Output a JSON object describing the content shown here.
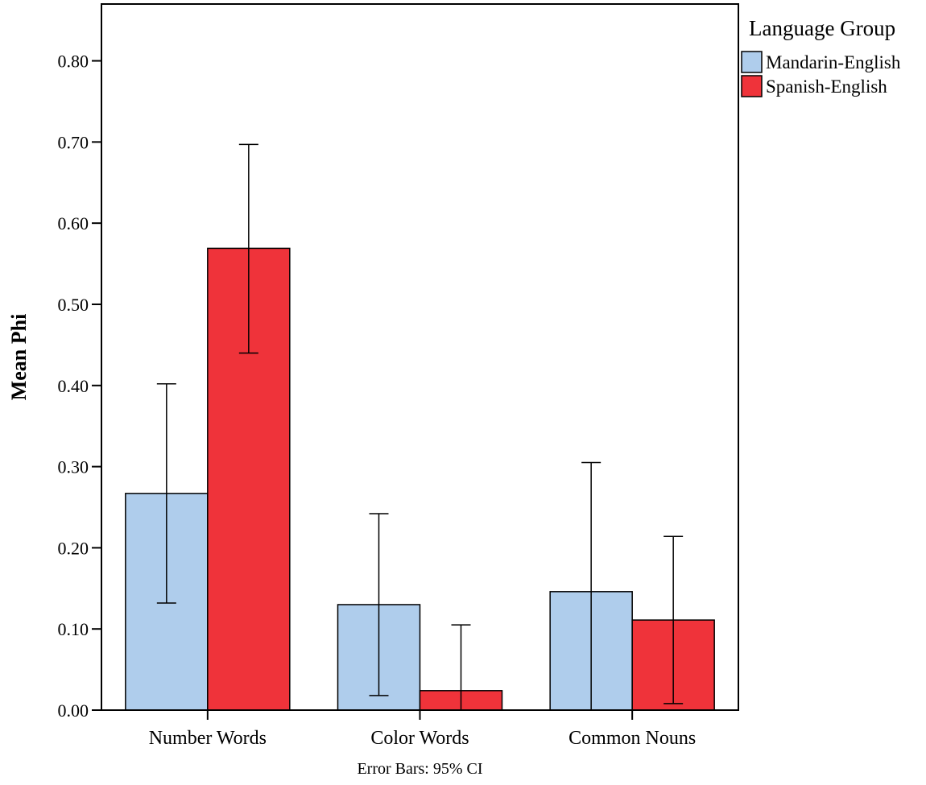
{
  "chart_data": {
    "type": "bar",
    "categories": [
      "Number Words",
      "Color Words",
      "Common Nouns"
    ],
    "series": [
      {
        "name": "Mandarin-English",
        "color": "#afcdec",
        "values": [
          0.267,
          0.13,
          0.146
        ],
        "ci_low": [
          0.132,
          0.018,
          0.0
        ],
        "ci_high": [
          0.402,
          0.242,
          0.305
        ]
      },
      {
        "name": "Spanish-English",
        "color": "#ef333a",
        "values": [
          0.569,
          0.024,
          0.111
        ],
        "ci_low": [
          0.44,
          0.0,
          0.008
        ],
        "ci_high": [
          0.697,
          0.105,
          0.214
        ]
      }
    ],
    "ylabel": "Mean Phi",
    "xlabel": "",
    "ylim": [
      0,
      0.87
    ],
    "yticks": [
      "0.00",
      "0.10",
      "0.20",
      "0.30",
      "0.40",
      "0.50",
      "0.60",
      "0.70",
      "0.80"
    ],
    "legend_title": "Language Group",
    "legend_position": "top-right",
    "note": "Error Bars: 95% CI",
    "grid": false
  }
}
